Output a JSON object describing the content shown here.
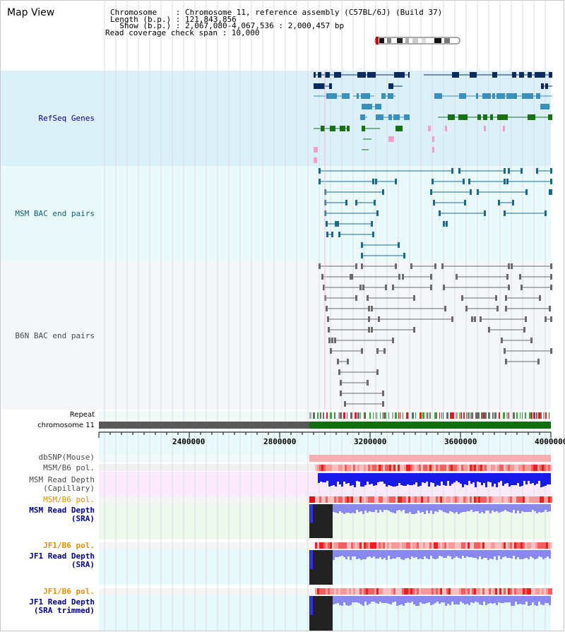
{
  "panel_title": "Map View",
  "header": {
    "chromosome_line": "Chromosome    : Chromosome 11, reference assembly (C57BL/6J) (Build 37)",
    "length_line": "Length (b.p.) : 121,843,856",
    "show_line": "  Show (b.p.) : 2,067,080-4,067,536 : 2,000,457 bp",
    "coverage_line": "Read coverage check span : 10,000"
  },
  "tracks": {
    "refseq": "RefSeq Genes",
    "msm_bac": "MSM BAC end pairs",
    "b6n_bac": "B6N BAC end pairs",
    "repeat": "Repeat",
    "chromosome": "chromosome 11",
    "dbsnp": "dbSNP(Mouse)",
    "msm_b6_pol_1": "MSM/B6 pol.",
    "msm_depth_cap_1": "MSM Read Depth",
    "msm_depth_cap_2": "(Capillary)",
    "msm_b6_pol_2": "MSM/B6 pol.",
    "msm_depth_sra_1": "MSM Read Depth",
    "msm_depth_sra_2": "(SRA)",
    "jf1_pol_1": "JF1/B6 pol.",
    "jf1_depth_sra_1": "JF1 Read Depth",
    "jf1_depth_sra_2": "(SRA)",
    "jf1_pol_2": "JF1/B6 pol.",
    "jf1_trim_1": "JF1 Read Depth",
    "jf1_trim_2": "(SRA trimmed)"
  },
  "axis": {
    "ticks": [
      "2400000",
      "2800000",
      "3200000",
      "3600000",
      "4000000"
    ]
  },
  "colors": {
    "refseq_bg": "#dcf0fa",
    "bac_bg": "#eafafa",
    "b6n_bg": "#f4f6fa",
    "refseq_dark": "#0a2a60",
    "refseq_mid": "#3a90b8",
    "refseq_green": "#187018",
    "refseq_pink": "#f0a0c8",
    "bac_line": "#1a6a8a",
    "b6n_line": "#6a6a6a",
    "chromosome_gray": "#585858",
    "chromosome_green": "#107010",
    "depth_blue": "#1a1ae8",
    "depth_light": "#8888f0",
    "pol_red": "#e83030",
    "label_navy": "#000080",
    "label_teal": "#106070",
    "label_gray": "#4a4a4a",
    "label_orange": "#e09000"
  }
}
